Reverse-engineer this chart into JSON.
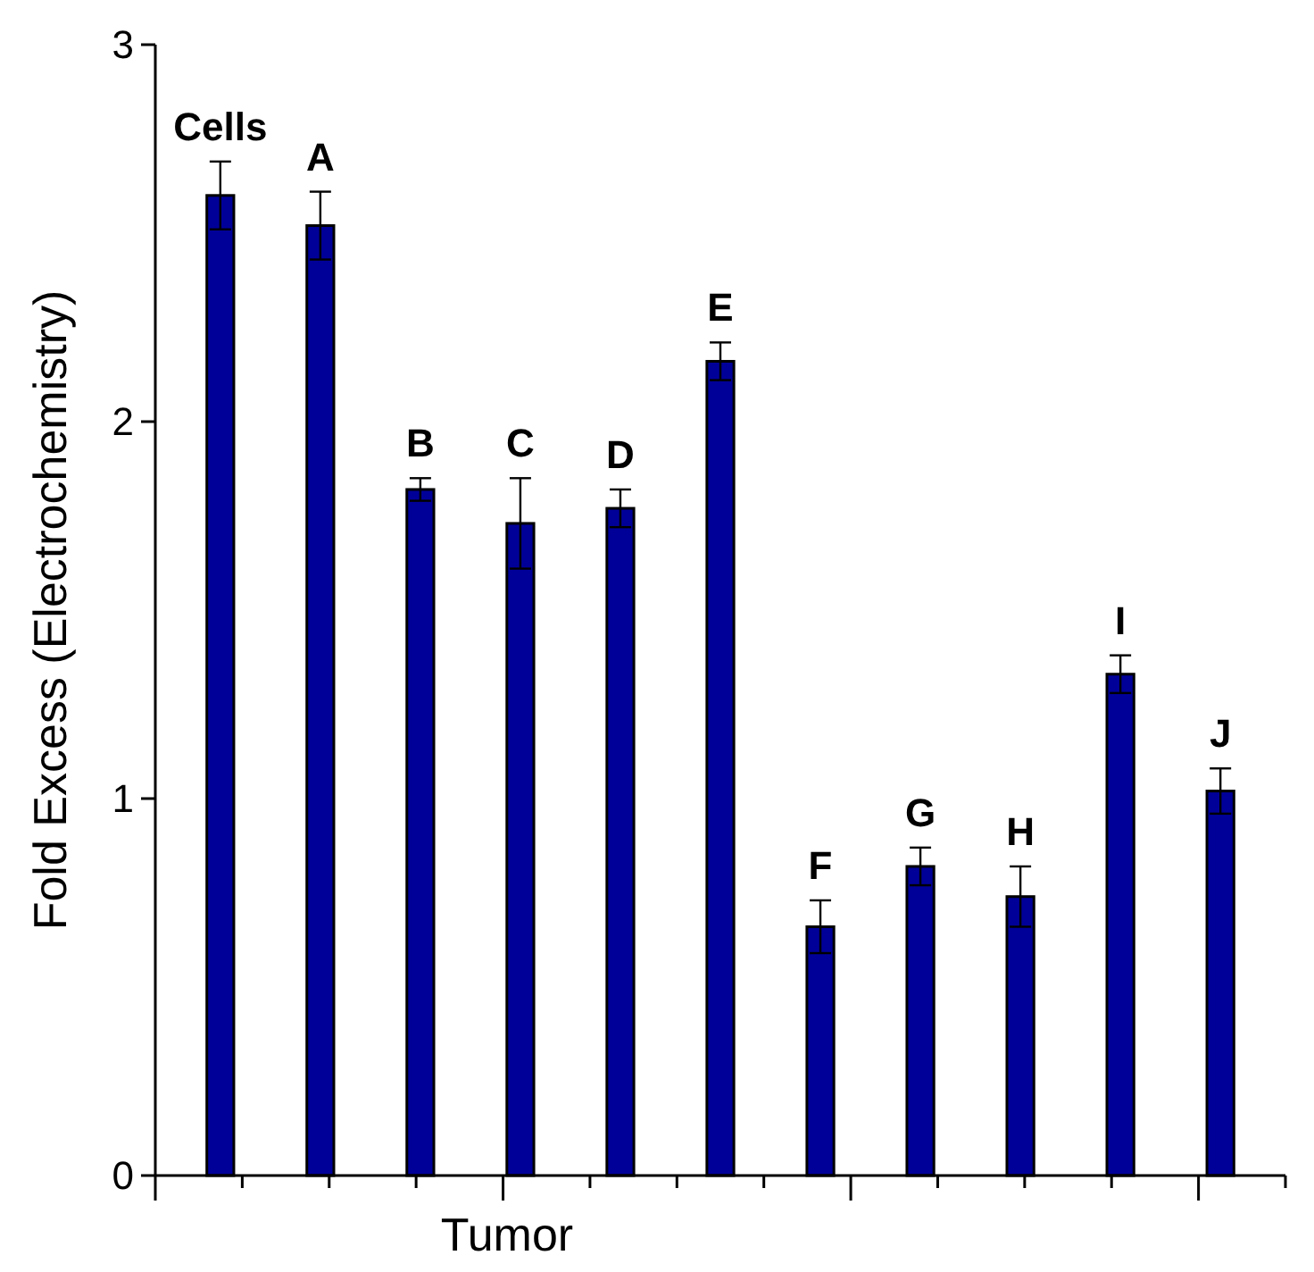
{
  "chart_data": {
    "type": "bar",
    "xlabel": "Tumor",
    "ylabel": "Fold Excess (Electrochemistry)",
    "categories": [
      "Cells",
      "A",
      "B",
      "C",
      "D",
      "E",
      "F",
      "G",
      "H",
      "I",
      "J"
    ],
    "values": [
      2.6,
      2.52,
      1.82,
      1.73,
      1.77,
      2.16,
      0.66,
      0.82,
      0.74,
      1.33,
      1.02
    ],
    "errors": [
      0.09,
      0.09,
      0.03,
      0.12,
      0.05,
      0.05,
      0.07,
      0.05,
      0.08,
      0.05,
      0.06
    ],
    "color": "#000099",
    "ylim": [
      0,
      3
    ],
    "yticks": [
      0,
      1,
      2,
      3
    ],
    "grid": false
  }
}
